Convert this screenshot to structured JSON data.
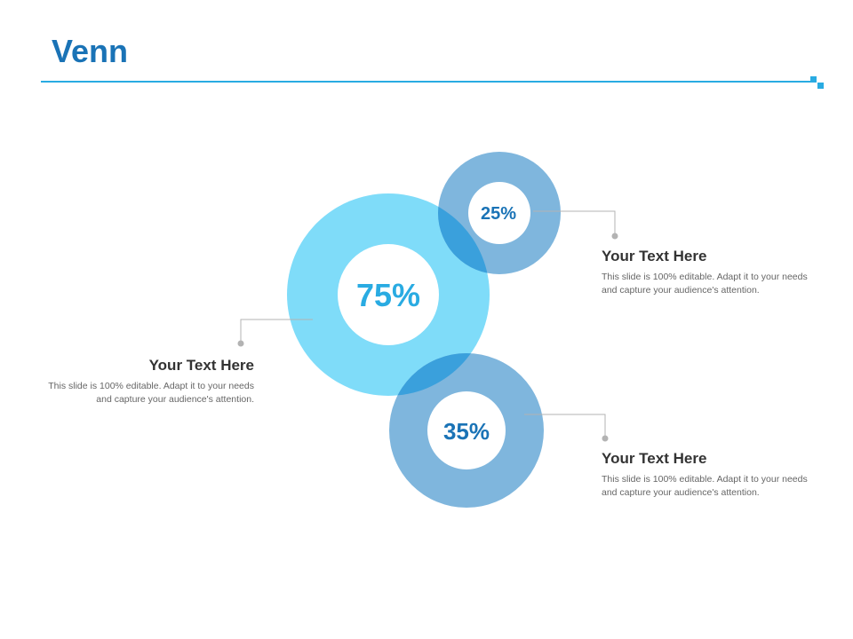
{
  "slide": {
    "title": "Venn"
  },
  "colors": {
    "accent_dark": "#1a73b6",
    "accent_light": "#29abe2",
    "ring_large": "#7fdcf9",
    "ring_small": "#7fb6dd",
    "overlap": "#3aa0dc",
    "connector": "#b3b3b3"
  },
  "circles": [
    {
      "id": "large",
      "label": "75%"
    },
    {
      "id": "top",
      "label": "25%"
    },
    {
      "id": "bottom",
      "label": "35%"
    }
  ],
  "callouts": [
    {
      "heading": "Your Text Here",
      "body": "This slide is 100% editable. Adapt it to your needs and capture your audience's attention."
    },
    {
      "heading": "Your Text Here",
      "body": "This slide is 100% editable. Adapt it to your needs and capture your audience's attention."
    },
    {
      "heading": "Your Text Here",
      "body": "This slide is 100% editable. Adapt it to your needs and capture your audience's attention."
    }
  ]
}
